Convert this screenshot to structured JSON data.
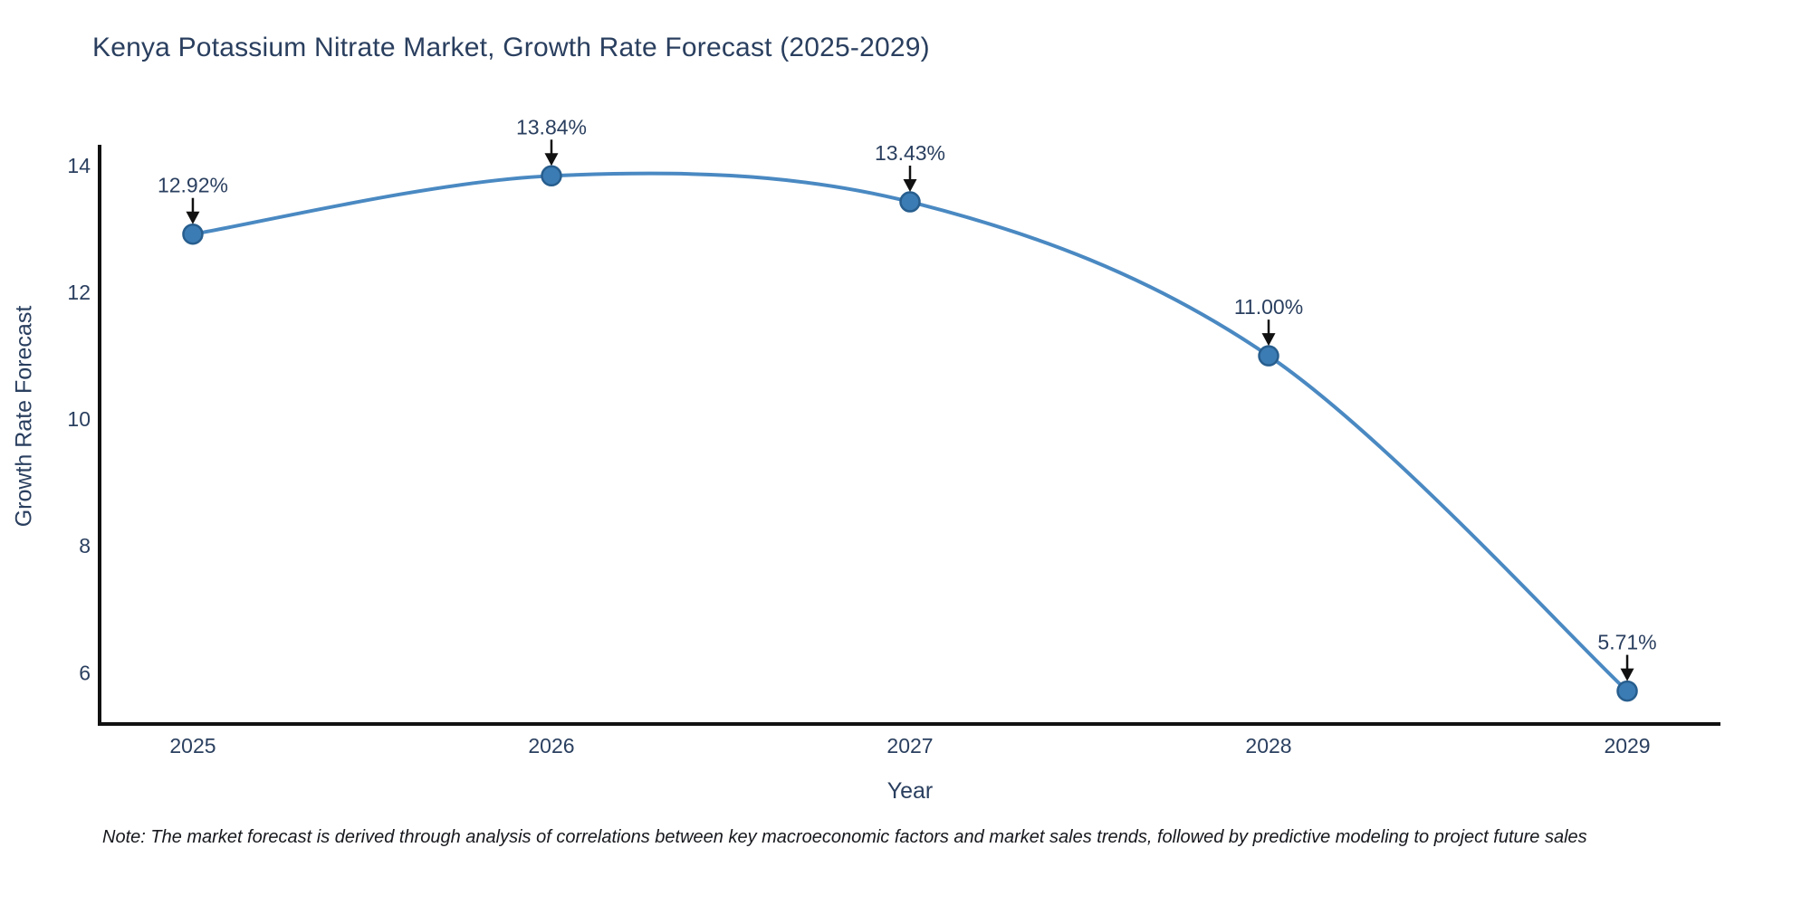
{
  "chart_data": {
    "type": "line",
    "title": "Kenya Potassium Nitrate Market, Growth Rate Forecast (2025-2029)",
    "xlabel": "Year",
    "ylabel": "Growth Rate Forecast",
    "x": [
      2025,
      2026,
      2027,
      2028,
      2029
    ],
    "values": [
      12.92,
      13.84,
      13.43,
      11.0,
      5.71
    ],
    "point_labels": [
      "12.92%",
      "13.84%",
      "13.43%",
      "11.00%",
      "5.71%"
    ],
    "xticks": [
      2025,
      2026,
      2027,
      2028,
      2029
    ],
    "yticks": [
      6,
      8,
      10,
      12,
      14
    ],
    "xlim": [
      2024.74,
      2029.26
    ],
    "ylim": [
      5.19,
      14.33
    ],
    "grid": false,
    "legend": "none",
    "line_shape": "spline",
    "colors": {
      "line": "#4a89c2",
      "marker_fill": "#3c7cb4",
      "marker_edge": "#275e8e",
      "axis": "#111111",
      "tick_text": "#2a3f5f",
      "annotation_text": "#2a3f5f",
      "arrow": "#111111",
      "background": "#ffffff"
    }
  },
  "note": "Note: The market forecast is derived through analysis of correlations between key macroeconomic factors and market sales trends, followed by predictive modeling to project future sales"
}
